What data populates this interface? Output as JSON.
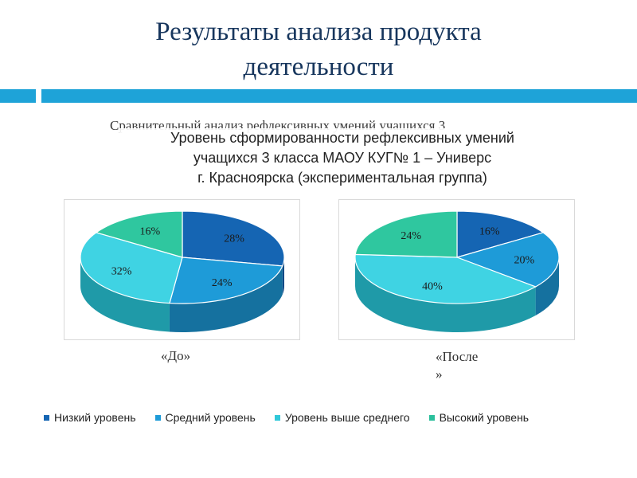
{
  "slide": {
    "title_line1": "Результаты анализа продукта",
    "title_line2": "деятельности",
    "ghost_caption": "Сравнительный анализ рефлексивных умений учащихся 3"
  },
  "chart_data": [
    {
      "type": "pie",
      "title_lines": [
        "Уровень сформированности рефлексивных умений",
        "учащихся 3 класса МАОУ КУГ№ 1 – Универс",
        "г. Красноярска (экспериментальная группа)"
      ],
      "caption": "«До»",
      "categories": [
        "Низкий уровень",
        "Средний уровень",
        "Уровень выше среднего",
        "Высокий уровень"
      ],
      "values": [
        28,
        24,
        32,
        16
      ],
      "labels": [
        "28%",
        "24%",
        "32%",
        "16%"
      ],
      "legend_position": "bottom"
    },
    {
      "type": "pie",
      "caption_line1": "«После",
      "caption_line2": "»",
      "categories": [
        "Низкий уровень",
        "Средний уровень",
        "Уровень выше среднего",
        "Высокий уровень"
      ],
      "values": [
        16,
        20,
        40,
        24
      ],
      "labels": [
        "16%",
        "20%",
        "40%",
        "24%"
      ],
      "legend_position": "bottom"
    }
  ],
  "legend": {
    "items": [
      {
        "label": "Низкий уровень",
        "color": "#1565b3"
      },
      {
        "label": "Средний уровень",
        "color": "#1e9bd8"
      },
      {
        "label": "Уровень выше среднего",
        "color": "#30c8d9"
      },
      {
        "label": "Высокий уровень",
        "color": "#2bbf9c"
      }
    ]
  },
  "colors": {
    "top": [
      "#1565b3",
      "#1e9bd8",
      "#3fd3e3",
      "#2fc79f"
    ],
    "side": [
      "#0e4a86",
      "#15719f",
      "#1f9aa8",
      "#1d8f74"
    ],
    "accent": "#1ea3d8",
    "title": "#17365d"
  }
}
